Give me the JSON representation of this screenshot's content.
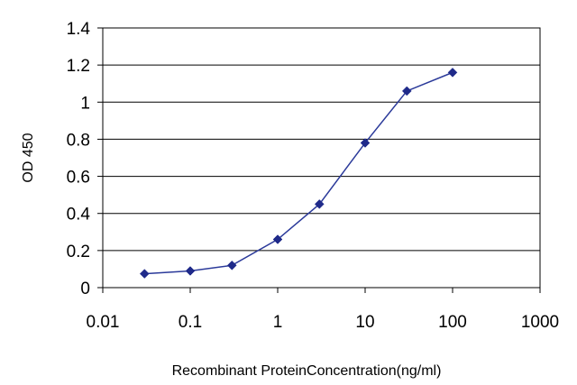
{
  "chart_data": {
    "type": "line",
    "title": "",
    "xlabel": "Recombinant ProteinConcentration(ng/ml)",
    "ylabel": "OD 450",
    "x_scale": "log",
    "xlim": [
      0.01,
      1000
    ],
    "ylim": [
      0,
      1.4
    ],
    "x_ticks": [
      "0.01",
      "0.1",
      "1",
      "10",
      "100",
      "1000"
    ],
    "y_ticks": [
      "0",
      "0.2",
      "0.4",
      "0.6",
      "0.8",
      "1",
      "1.2",
      "1.4"
    ],
    "grid": "horizontal",
    "legend": "none",
    "series": [
      {
        "color": "#2b3a9a",
        "marker": "diamond",
        "x": [
          0.03,
          0.1,
          0.3,
          1,
          3,
          10,
          30,
          100
        ],
        "y": [
          0.075,
          0.09,
          0.12,
          0.26,
          0.45,
          0.78,
          1.06,
          1.16
        ]
      }
    ]
  }
}
